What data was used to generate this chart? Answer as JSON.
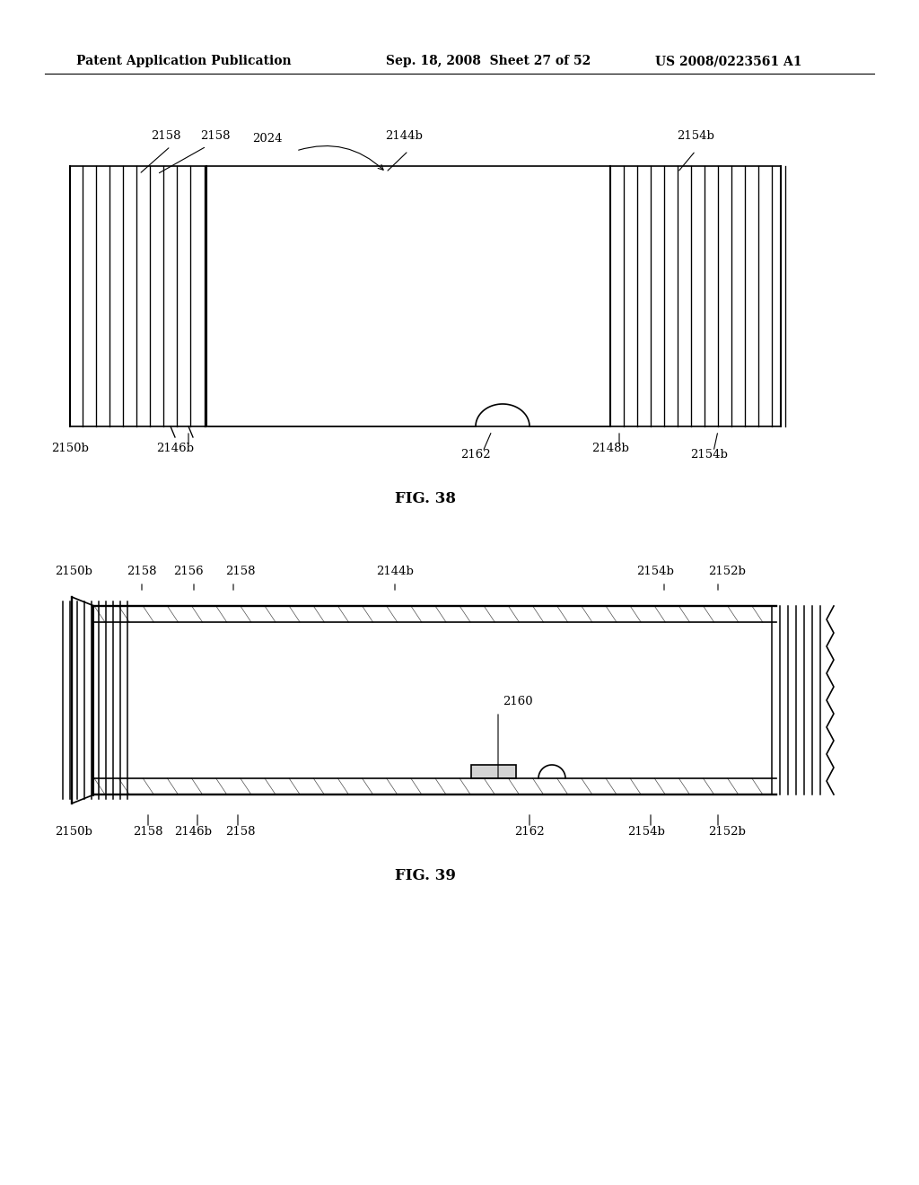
{
  "bg_color": "#ffffff",
  "header_left": "Patent Application Publication",
  "header_mid": "Sep. 18, 2008  Sheet 27 of 52",
  "header_right": "US 2008/0223561 A1",
  "fig38_caption": "FIG. 38",
  "fig39_caption": "FIG. 39",
  "line_color": "#000000",
  "hatch_color": "#000000"
}
